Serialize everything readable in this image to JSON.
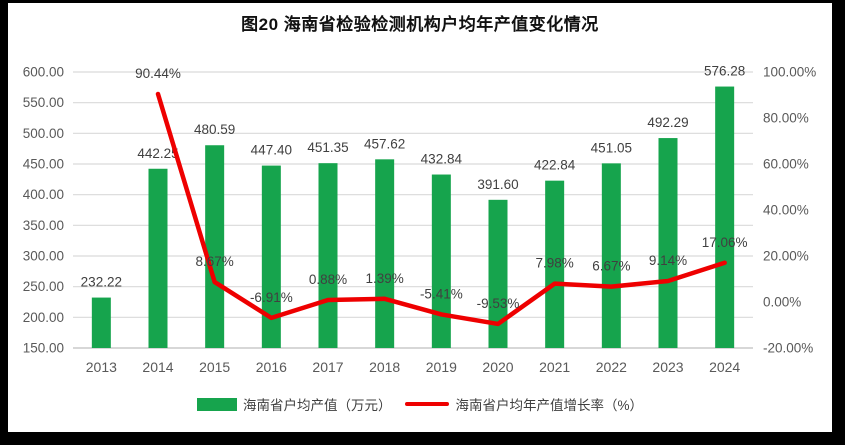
{
  "chart_data": {
    "type": "combo",
    "title": "图20  海南省检验检测机构户均年产值变化情况",
    "categories": [
      "2013",
      "2014",
      "2015",
      "2016",
      "2017",
      "2018",
      "2019",
      "2020",
      "2021",
      "2022",
      "2023",
      "2024"
    ],
    "series": [
      {
        "name": "海南省户均产值（万元）",
        "type": "bar",
        "axis": "left",
        "color": "#16A44D",
        "values": [
          232.22,
          442.25,
          480.59,
          447.4,
          451.35,
          457.62,
          432.84,
          391.6,
          422.84,
          451.05,
          492.29,
          576.28
        ],
        "labels": [
          "232.22",
          "442.25",
          "480.59",
          "447.40",
          "451.35",
          "457.62",
          "432.84",
          "391.60",
          "422.84",
          "451.05",
          "492.29",
          "576.28"
        ]
      },
      {
        "name": "海南省户均年产值增长率（%）",
        "type": "line",
        "axis": "right",
        "color": "#EE0000",
        "values": [
          null,
          90.44,
          8.67,
          -6.91,
          0.88,
          1.39,
          -5.41,
          -9.53,
          7.98,
          6.67,
          9.14,
          17.06
        ],
        "labels": [
          null,
          "90.44%",
          "8.67%",
          "-6.91%",
          "0.88%",
          "1.39%",
          "-5.41%",
          "-9.53%",
          "7.98%",
          "6.67%",
          "9.14%",
          "17.06%"
        ]
      }
    ],
    "left_axis": {
      "min": 150,
      "max": 600,
      "step": 50,
      "ticks": [
        "600.00",
        "550.00",
        "500.00",
        "450.00",
        "400.00",
        "350.00",
        "300.00",
        "250.00",
        "200.00",
        "150.00"
      ]
    },
    "right_axis": {
      "min": -20,
      "max": 100,
      "step": 20,
      "ticks": [
        "100.00%",
        "80.00%",
        "60.00%",
        "40.00%",
        "20.00%",
        "0.00%",
        "-20.00%"
      ]
    },
    "grid": true,
    "legend_position": "bottom",
    "colors": {
      "gridline": "#D9D9D9",
      "axis_line": "#BFBFBF",
      "tick_text": "#595959",
      "data_label_text": "#404040"
    }
  }
}
